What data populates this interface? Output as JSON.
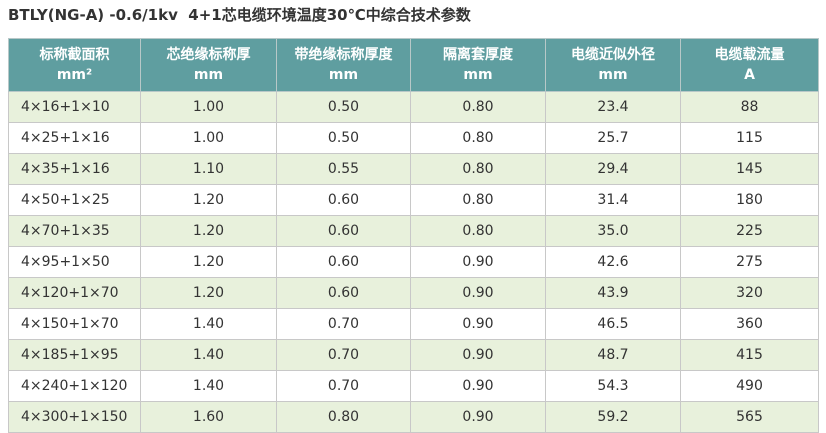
{
  "title": "BTLY(NG-A) -0.6/1kv  4+1芯电缆环境温度30℃中综合技术参数",
  "table": {
    "header": [
      [
        "标称截面积",
        "mm²"
      ],
      [
        "芯绝缘标称厚",
        "mm"
      ],
      [
        "带绝缘标称厚度",
        "mm"
      ],
      [
        "隔离套厚度",
        "mm"
      ],
      [
        "电缆近似外径",
        "mm"
      ],
      [
        "电缆载流量",
        "A"
      ]
    ],
    "rows": [
      [
        "4×16+1×10",
        "1.00",
        "0.50",
        "0.80",
        "23.4",
        "88"
      ],
      [
        "4×25+1×16",
        "1.00",
        "0.50",
        "0.80",
        "25.7",
        "115"
      ],
      [
        "4×35+1×16",
        "1.10",
        "0.55",
        "0.80",
        "29.4",
        "145"
      ],
      [
        "4×50+1×25",
        "1.20",
        "0.60",
        "0.80",
        "31.4",
        "180"
      ],
      [
        "4×70+1×35",
        "1.20",
        "0.60",
        "0.80",
        "35.0",
        "225"
      ],
      [
        "4×95+1×50",
        "1.20",
        "0.60",
        "0.90",
        "42.6",
        "275"
      ],
      [
        "4×120+1×70",
        "1.20",
        "0.60",
        "0.90",
        "43.9",
        "320"
      ],
      [
        "4×150+1×70",
        "1.40",
        "0.70",
        "0.90",
        "46.5",
        "360"
      ],
      [
        "4×185+1×95",
        "1.40",
        "0.70",
        "0.90",
        "48.7",
        "415"
      ],
      [
        "4×240+1×120",
        "1.40",
        "0.70",
        "0.90",
        "54.3",
        "490"
      ],
      [
        "4×300+1×150",
        "1.60",
        "0.80",
        "0.90",
        "59.2",
        "565"
      ]
    ]
  }
}
